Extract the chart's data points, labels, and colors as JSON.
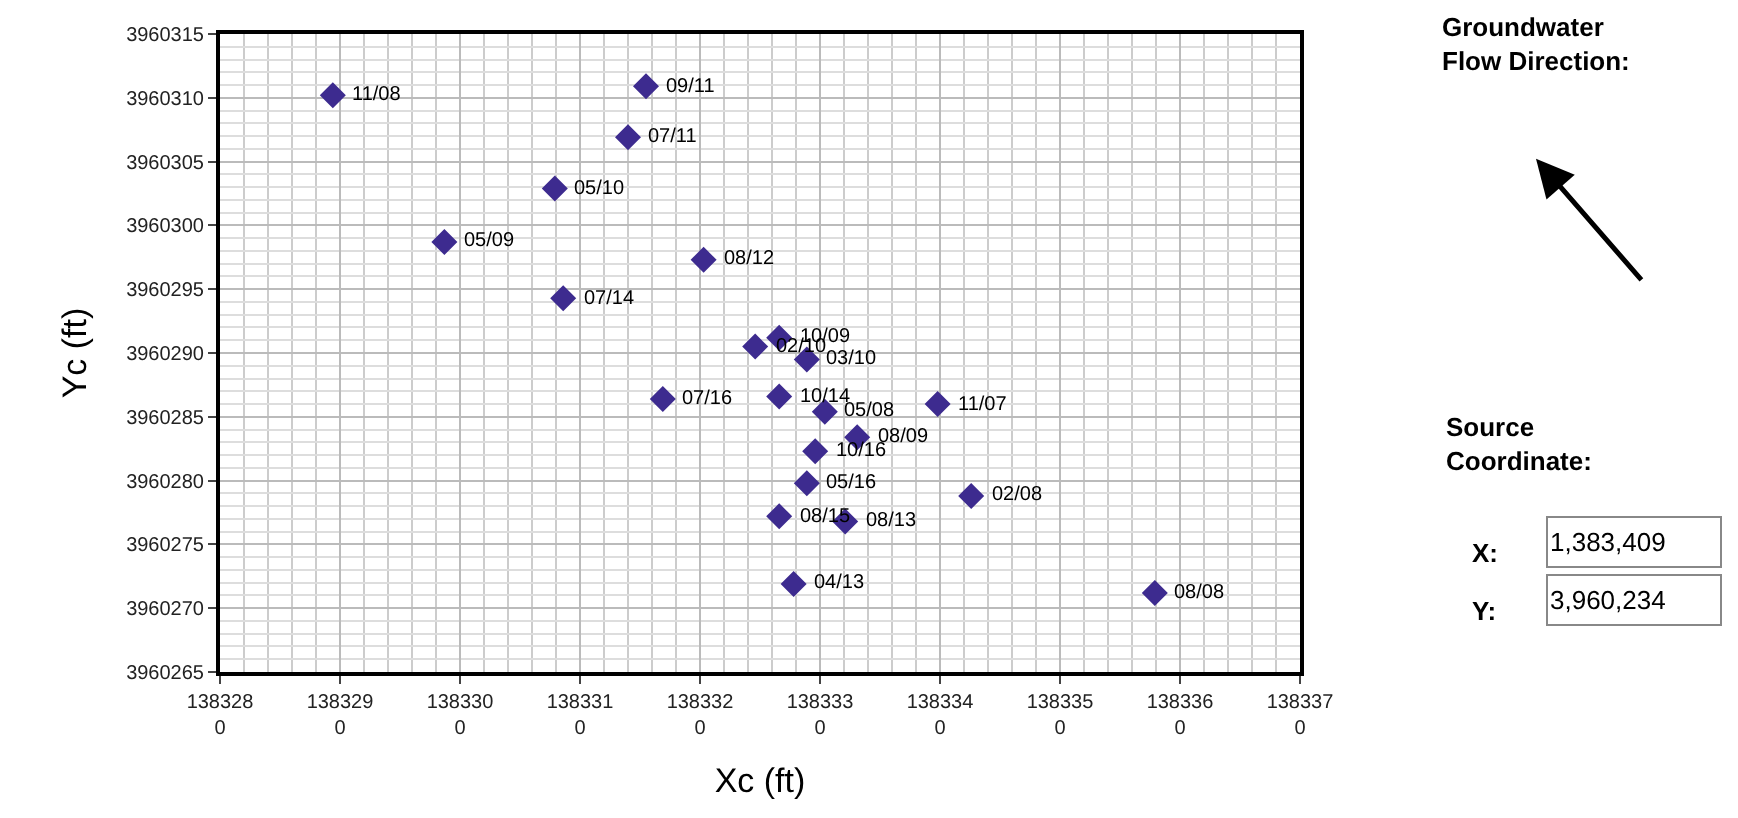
{
  "chart_data": {
    "type": "scatter",
    "xlabel": "Xc (ft)",
    "ylabel": "Yc (ft)",
    "x": [
      1383289.4,
      1383315.5,
      1383314.0,
      1383307.9,
      1383298.7,
      1383320.3,
      1383308.6,
      1383324.6,
      1383326.6,
      1383328.9,
      1383316.9,
      1383326.6,
      1383330.4,
      1383339.8,
      1383333.1,
      1383329.6,
      1383328.9,
      1383342.6,
      1383326.6,
      1383332.1,
      1383327.8,
      1383357.9
    ],
    "series": [
      {
        "color": "#3d2b8f",
        "values": [
          3960310.2,
          3960310.9,
          3960306.9,
          3960302.9,
          3960298.7,
          3960297.3,
          3960294.3,
          3960290.5,
          3960291.2,
          3960289.5,
          3960286.4,
          3960286.6,
          3960285.4,
          3960286.0,
          3960283.4,
          3960282.3,
          3960279.8,
          3960278.8,
          3960277.2,
          3960276.8,
          3960271.9,
          3960271.2
        ]
      }
    ],
    "marker": "diamond",
    "grid": true,
    "xlim": [
      1383280,
      1383370
    ],
    "xticks": [
      1383280,
      1383290,
      1383300,
      1383310,
      1383320,
      1383330,
      1383340,
      1383350,
      1383360,
      1383370
    ],
    "ylim": [
      3960265,
      3960315
    ],
    "yticks": [
      3960265,
      3960270,
      3960275,
      3960280,
      3960285,
      3960290,
      3960295,
      3960300,
      3960305,
      3960310,
      3960315
    ],
    "annotations": [
      {
        "text": "11/08",
        "x": 1383289.4,
        "y": 3960310.2
      },
      {
        "text": "09/11",
        "x": 1383315.5,
        "y": 3960310.9
      },
      {
        "text": "07/11",
        "x": 1383314.0,
        "y": 3960306.9
      },
      {
        "text": "05/10",
        "x": 1383307.9,
        "y": 3960302.9
      },
      {
        "text": "05/09",
        "x": 1383298.7,
        "y": 3960298.7
      },
      {
        "text": "08/12",
        "x": 1383320.3,
        "y": 3960297.3
      },
      {
        "text": "07/14",
        "x": 1383308.6,
        "y": 3960294.3
      },
      {
        "text": "02/10",
        "x": 1383324.6,
        "y": 3960290.5
      },
      {
        "text": "10/09",
        "x": 1383326.6,
        "y": 3960291.2
      },
      {
        "text": "03/10",
        "x": 1383328.9,
        "y": 3960289.5
      },
      {
        "text": "07/16",
        "x": 1383316.9,
        "y": 3960286.4
      },
      {
        "text": "10/14",
        "x": 1383326.6,
        "y": 3960286.6
      },
      {
        "text": "05/08",
        "x": 1383330.4,
        "y": 3960285.4
      },
      {
        "text": "11/07",
        "x": 1383339.8,
        "y": 3960286.0
      },
      {
        "text": "08/09",
        "x": 1383333.1,
        "y": 3960283.4
      },
      {
        "text": "10/16",
        "x": 1383329.6,
        "y": 3960282.3
      },
      {
        "text": "05/16",
        "x": 1383328.9,
        "y": 3960279.8
      },
      {
        "text": "02/08",
        "x": 1383342.6,
        "y": 3960278.8
      },
      {
        "text": "08/15",
        "x": 1383326.6,
        "y": 3960277.2
      },
      {
        "text": "08/13",
        "x": 1383332.1,
        "y": 3960276.8
      },
      {
        "text": "04/13",
        "x": 1383327.8,
        "y": 3960271.9
      },
      {
        "text": "08/08",
        "x": 1383357.9,
        "y": 3960271.2
      },
      "Groundwater\nFlow Direction:",
      "Source\nCoordinate:",
      "X:",
      "1,383,409",
      "Y:",
      "3,960,234"
    ]
  }
}
